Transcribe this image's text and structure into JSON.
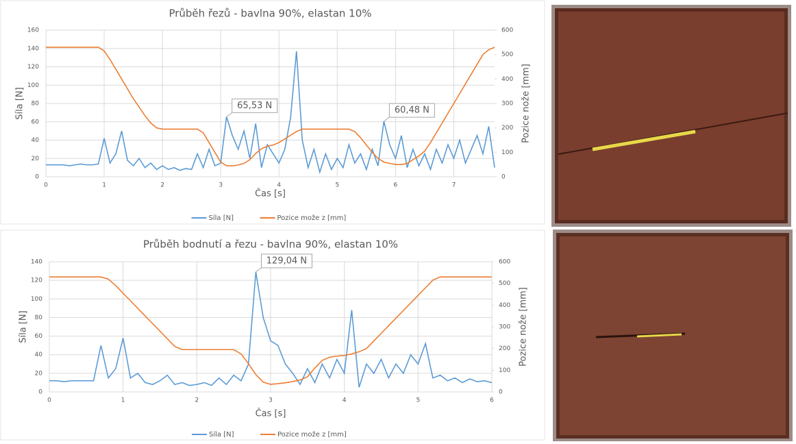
{
  "chart_data": [
    {
      "type": "line",
      "title": "Průběh řezů - bavlna 90%, elastan 10%",
      "xlabel": "Čas [s]",
      "ylabel": "Síla [N]",
      "y2label": "Pozice nože [mm]",
      "x": [
        0,
        0.1,
        0.2,
        0.3,
        0.4,
        0.5,
        0.6,
        0.7,
        0.8,
        0.9,
        1,
        1.1,
        1.2,
        1.3,
        1.4,
        1.5,
        1.6,
        1.7,
        1.8,
        1.9,
        2,
        2.1,
        2.2,
        2.3,
        2.4,
        2.5,
        2.6,
        2.7,
        2.8,
        2.9,
        3,
        3.1,
        3.2,
        3.3,
        3.4,
        3.5,
        3.6,
        3.7,
        3.8,
        3.9,
        4,
        4.1,
        4.2,
        4.3,
        4.4,
        4.5,
        4.6,
        4.7,
        4.8,
        4.9,
        5,
        5.1,
        5.2,
        5.3,
        5.4,
        5.5,
        5.6,
        5.7,
        5.8,
        5.9,
        6,
        6.1,
        6.2,
        6.3,
        6.4,
        6.5,
        6.6,
        6.7,
        6.8,
        6.9,
        7,
        7.1,
        7.2,
        7.3,
        7.4,
        7.5,
        7.6,
        7.7
      ],
      "series": [
        {
          "name": "Síla [N]",
          "color": "#5b9bd5",
          "axis": "y",
          "values": [
            13,
            13,
            13,
            13,
            12,
            13,
            14,
            13,
            13,
            14,
            42,
            15,
            25,
            50,
            18,
            12,
            20,
            10,
            15,
            8,
            12,
            8,
            10,
            7,
            9,
            8,
            25,
            10,
            30,
            12,
            15,
            65.53,
            45,
            30,
            50,
            20,
            58,
            10,
            35,
            25,
            15,
            30,
            65,
            137,
            40,
            10,
            30,
            5,
            25,
            8,
            20,
            10,
            35,
            15,
            25,
            8,
            30,
            12,
            60.48,
            35,
            20,
            45,
            10,
            30,
            12,
            25,
            8,
            30,
            15,
            35,
            20,
            40,
            15,
            30,
            45,
            25,
            55,
            10
          ]
        },
        {
          "name": "Pozice može z [mm]",
          "color": "#ed7d31",
          "axis": "y2",
          "values": [
            530,
            530,
            530,
            530,
            530,
            530,
            530,
            530,
            530,
            530,
            515,
            480,
            440,
            400,
            360,
            320,
            285,
            250,
            220,
            200,
            195,
            195,
            195,
            195,
            195,
            195,
            195,
            180,
            140,
            100,
            60,
            45,
            45,
            48,
            55,
            70,
            95,
            115,
            125,
            130,
            140,
            155,
            170,
            185,
            195,
            195,
            195,
            195,
            195,
            195,
            195,
            195,
            195,
            185,
            160,
            130,
            100,
            75,
            60,
            55,
            50,
            50,
            55,
            70,
            85,
            105,
            140,
            180,
            220,
            260,
            300,
            340,
            380,
            420,
            460,
            500,
            520,
            530
          ]
        }
      ],
      "xlim": [
        0,
        7.7
      ],
      "xticks": [
        0,
        1,
        2,
        3,
        4,
        5,
        6,
        7
      ],
      "ylim": [
        0,
        160
      ],
      "yticks": [
        0,
        20,
        40,
        60,
        80,
        100,
        120,
        140,
        160
      ],
      "y2lim": [
        0,
        600
      ],
      "y2ticks": [
        0,
        100,
        200,
        300,
        400,
        500,
        600
      ],
      "grid": true,
      "legend": "bottom",
      "annotations": [
        {
          "text": "65,53 N",
          "x": 3.1,
          "y": 65.53
        },
        {
          "text": "60,48 N",
          "x": 5.8,
          "y": 60.48
        }
      ]
    },
    {
      "type": "line",
      "title": "Průběh bodnutí a řezu - bavlna 90%, elastan 10%",
      "xlabel": "Čas [s]",
      "ylabel": "Síla [N]",
      "y2label": "Pozice nože [mm]",
      "x": [
        0,
        0.1,
        0.2,
        0.3,
        0.4,
        0.5,
        0.6,
        0.7,
        0.8,
        0.9,
        1,
        1.1,
        1.2,
        1.3,
        1.4,
        1.5,
        1.6,
        1.7,
        1.8,
        1.9,
        2,
        2.1,
        2.2,
        2.3,
        2.4,
        2.5,
        2.6,
        2.7,
        2.8,
        2.9,
        3,
        3.1,
        3.2,
        3.3,
        3.4,
        3.5,
        3.6,
        3.7,
        3.8,
        3.9,
        4,
        4.1,
        4.2,
        4.3,
        4.4,
        4.5,
        4.6,
        4.7,
        4.8,
        4.9,
        5,
        5.1,
        5.2,
        5.3,
        5.4,
        5.5,
        5.6,
        5.7,
        5.8,
        5.9,
        6
      ],
      "series": [
        {
          "name": "Síla [N]",
          "color": "#5b9bd5",
          "axis": "y",
          "values": [
            12,
            12,
            11,
            12,
            12,
            12,
            12,
            50,
            15,
            25,
            58,
            15,
            20,
            10,
            8,
            12,
            18,
            8,
            10,
            7,
            8,
            10,
            7,
            15,
            8,
            18,
            12,
            30,
            129.04,
            80,
            55,
            50,
            30,
            20,
            8,
            25,
            10,
            30,
            15,
            35,
            20,
            88,
            5,
            30,
            20,
            35,
            15,
            30,
            20,
            40,
            30,
            52,
            15,
            18,
            12,
            15,
            10,
            14,
            11,
            12,
            10
          ]
        },
        {
          "name": "Pozice može z [mm]",
          "color": "#ed7d31",
          "axis": "y2",
          "values": [
            530,
            530,
            530,
            530,
            530,
            530,
            530,
            530,
            520,
            490,
            455,
            420,
            385,
            350,
            315,
            280,
            245,
            210,
            195,
            195,
            195,
            195,
            195,
            195,
            195,
            195,
            175,
            130,
            80,
            45,
            35,
            38,
            42,
            48,
            55,
            70,
            110,
            145,
            160,
            165,
            168,
            175,
            185,
            200,
            235,
            270,
            305,
            340,
            375,
            410,
            445,
            480,
            515,
            530,
            530,
            530,
            530,
            530,
            530,
            530,
            530
          ]
        }
      ],
      "xlim": [
        0,
        6
      ],
      "xticks": [
        0,
        1,
        2,
        3,
        4,
        5,
        6
      ],
      "ylim": [
        0,
        140
      ],
      "yticks": [
        0,
        20,
        40,
        60,
        80,
        100,
        120,
        140
      ],
      "y2lim": [
        0,
        600
      ],
      "y2ticks": [
        0,
        100,
        200,
        300,
        400,
        500,
        600
      ],
      "grid": true,
      "legend": "bottom",
      "annotations": [
        {
          "text": "129,04 N",
          "x": 2.8,
          "y": 129.04
        }
      ]
    }
  ]
}
